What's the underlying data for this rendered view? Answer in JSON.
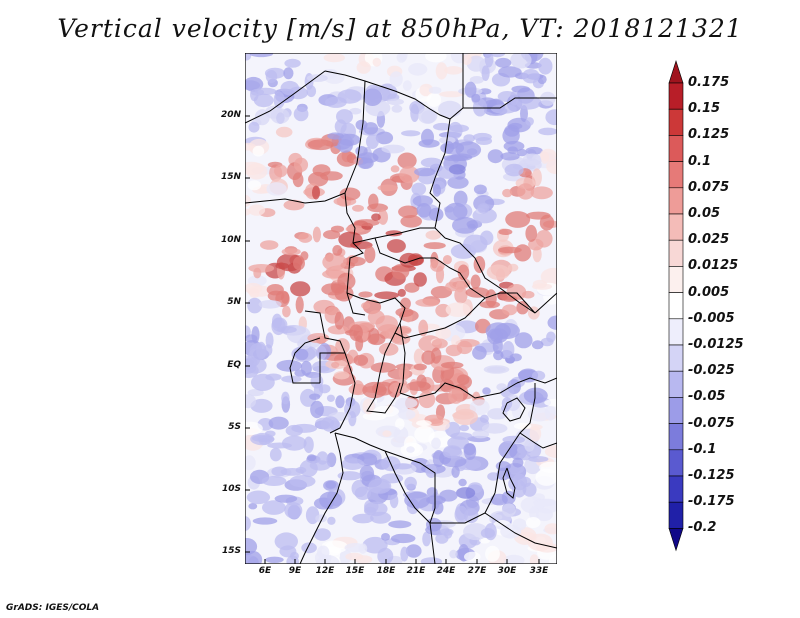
{
  "title": "Vertical velocity [m/s] at 850hPa, VT: 2018121321",
  "footer": "GrADS: IGES/COLA",
  "lat_ticks": [
    "20N",
    "15N",
    "10N",
    "5N",
    "EQ",
    "5S",
    "10S",
    "15S"
  ],
  "lon_ticks": [
    "6E",
    "9E",
    "12E",
    "15E",
    "18E",
    "21E",
    "24E",
    "27E",
    "30E",
    "33E"
  ],
  "colorbar": {
    "labels": [
      "0.175",
      "0.15",
      "0.125",
      "0.1",
      "0.075",
      "0.05",
      "0.025",
      "0.0125",
      "0.005",
      "-0.005",
      "-0.0125",
      "-0.025",
      "-0.05",
      "-0.075",
      "-0.1",
      "-0.125",
      "-0.175",
      "-0.2"
    ],
    "colors": [
      "#a0141e",
      "#b81e28",
      "#cc3838",
      "#dc5a5a",
      "#e67a78",
      "#ee9c98",
      "#f4bcb8",
      "#f8d8d6",
      "#fcf0ee",
      "#ffffff",
      "#eeeefc",
      "#d4d4f6",
      "#b8b8f0",
      "#9c9ce8",
      "#7c7cdc",
      "#5a5ad0",
      "#3a3ac0",
      "#2020a8",
      "#100888"
    ]
  }
}
